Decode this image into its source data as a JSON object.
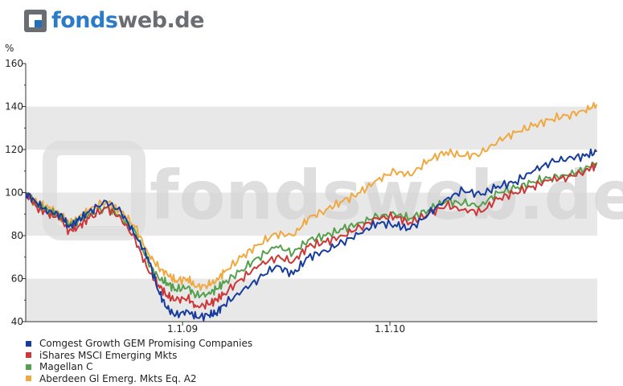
{
  "brand": {
    "part1": "fonds",
    "part2": "web.de",
    "watermark": "fondsweb.de"
  },
  "chart_data": {
    "type": "line",
    "ylabel": "%",
    "ylim": [
      40,
      160
    ],
    "yticks": [
      40,
      60,
      80,
      100,
      120,
      140,
      160
    ],
    "xticks": [
      {
        "label": "1.1.09",
        "date": "2009-01-01"
      },
      {
        "label": "1.1.10",
        "date": "2010-01-01"
      }
    ],
    "xrange": [
      "2008-03-31",
      "2011-01-01"
    ],
    "grid": "horizontal bands",
    "legend_position": "bottom",
    "series": [
      {
        "name": "Comgest Growth GEM Promising Companies",
        "color": "#173c9e",
        "points": [
          [
            "2008-03-31",
            100
          ],
          [
            "2008-04-20",
            95
          ],
          [
            "2008-05-10",
            91
          ],
          [
            "2008-05-31",
            90
          ],
          [
            "2008-06-15",
            84
          ],
          [
            "2008-07-01",
            87
          ],
          [
            "2008-07-20",
            91
          ],
          [
            "2008-08-20",
            96
          ],
          [
            "2008-09-15",
            91
          ],
          [
            "2008-10-10",
            80
          ],
          [
            "2008-11-01",
            70
          ],
          [
            "2008-11-20",
            54
          ],
          [
            "2008-12-05",
            46
          ],
          [
            "2008-12-20",
            43
          ],
          [
            "2009-01-10",
            45
          ],
          [
            "2009-01-25",
            42
          ],
          [
            "2009-02-15",
            43
          ],
          [
            "2009-03-01",
            44
          ],
          [
            "2009-03-15",
            48
          ],
          [
            "2009-04-15",
            54
          ],
          [
            "2009-05-15",
            60
          ],
          [
            "2009-06-15",
            66
          ],
          [
            "2009-07-15",
            62
          ],
          [
            "2009-08-10",
            70
          ],
          [
            "2009-09-10",
            73
          ],
          [
            "2009-10-10",
            77
          ],
          [
            "2009-11-10",
            81
          ],
          [
            "2009-12-10",
            86
          ],
          [
            "2010-01-10",
            85
          ],
          [
            "2010-02-05",
            83
          ],
          [
            "2010-03-10",
            90
          ],
          [
            "2010-04-10",
            97
          ],
          [
            "2010-05-10",
            101
          ],
          [
            "2010-06-10",
            99
          ],
          [
            "2010-07-10",
            103
          ],
          [
            "2010-08-10",
            105
          ],
          [
            "2010-09-10",
            110
          ],
          [
            "2010-10-10",
            114
          ],
          [
            "2010-11-10",
            116
          ],
          [
            "2010-12-10",
            117
          ],
          [
            "2010-12-31",
            119
          ]
        ]
      },
      {
        "name": "iShares MSCI Emerging Mkts",
        "color": "#cc3737",
        "points": [
          [
            "2008-03-31",
            100
          ],
          [
            "2008-04-20",
            93
          ],
          [
            "2008-05-10",
            90
          ],
          [
            "2008-05-31",
            88
          ],
          [
            "2008-06-15",
            82
          ],
          [
            "2008-07-01",
            84
          ],
          [
            "2008-07-20",
            88
          ],
          [
            "2008-08-20",
            93
          ],
          [
            "2008-09-15",
            88
          ],
          [
            "2008-10-10",
            78
          ],
          [
            "2008-11-01",
            64
          ],
          [
            "2008-11-20",
            57
          ],
          [
            "2008-12-05",
            52
          ],
          [
            "2008-12-20",
            50
          ],
          [
            "2009-01-10",
            51
          ],
          [
            "2009-01-25",
            47
          ],
          [
            "2009-02-15",
            48
          ],
          [
            "2009-03-01",
            50
          ],
          [
            "2009-03-15",
            53
          ],
          [
            "2009-04-15",
            60
          ],
          [
            "2009-05-15",
            66
          ],
          [
            "2009-06-15",
            70
          ],
          [
            "2009-07-15",
            68
          ],
          [
            "2009-08-10",
            75
          ],
          [
            "2009-09-10",
            77
          ],
          [
            "2009-10-10",
            80
          ],
          [
            "2009-11-10",
            84
          ],
          [
            "2009-12-10",
            88
          ],
          [
            "2010-01-10",
            89
          ],
          [
            "2010-02-05",
            86
          ],
          [
            "2010-03-10",
            90
          ],
          [
            "2010-04-10",
            94
          ],
          [
            "2010-05-10",
            92
          ],
          [
            "2010-06-10",
            91
          ],
          [
            "2010-07-10",
            97
          ],
          [
            "2010-08-10",
            100
          ],
          [
            "2010-09-10",
            103
          ],
          [
            "2010-10-10",
            106
          ],
          [
            "2010-11-10",
            107
          ],
          [
            "2010-12-10",
            110
          ],
          [
            "2010-12-31",
            113
          ]
        ]
      },
      {
        "name": "Magellan C",
        "color": "#56a04d",
        "points": [
          [
            "2008-03-31",
            100
          ],
          [
            "2008-04-20",
            94
          ],
          [
            "2008-05-10",
            92
          ],
          [
            "2008-05-31",
            89
          ],
          [
            "2008-06-15",
            85
          ],
          [
            "2008-07-01",
            87
          ],
          [
            "2008-07-20",
            90
          ],
          [
            "2008-08-20",
            93
          ],
          [
            "2008-09-15",
            89
          ],
          [
            "2008-10-10",
            82
          ],
          [
            "2008-11-01",
            68
          ],
          [
            "2008-11-20",
            60
          ],
          [
            "2008-12-05",
            58
          ],
          [
            "2008-12-20",
            55
          ],
          [
            "2009-01-10",
            56
          ],
          [
            "2009-01-25",
            52
          ],
          [
            "2009-02-15",
            53
          ],
          [
            "2009-03-01",
            55
          ],
          [
            "2009-03-15",
            58
          ],
          [
            "2009-04-15",
            64
          ],
          [
            "2009-05-15",
            70
          ],
          [
            "2009-06-15",
            75
          ],
          [
            "2009-07-15",
            72
          ],
          [
            "2009-08-10",
            78
          ],
          [
            "2009-09-10",
            80
          ],
          [
            "2009-10-10",
            83
          ],
          [
            "2009-11-10",
            86
          ],
          [
            "2009-12-10",
            89
          ],
          [
            "2010-01-10",
            90
          ],
          [
            "2010-02-05",
            88
          ],
          [
            "2010-03-10",
            92
          ],
          [
            "2010-04-10",
            96
          ],
          [
            "2010-05-10",
            95
          ],
          [
            "2010-06-10",
            94
          ],
          [
            "2010-07-10",
            100
          ],
          [
            "2010-08-10",
            102
          ],
          [
            "2010-09-10",
            105
          ],
          [
            "2010-10-10",
            107
          ],
          [
            "2010-11-10",
            108
          ],
          [
            "2010-12-10",
            111
          ],
          [
            "2010-12-31",
            114
          ]
        ]
      },
      {
        "name": "Aberdeen Gl Emerg. Mkts Eq. A2",
        "color": "#f0a840",
        "points": [
          [
            "2008-03-31",
            100
          ],
          [
            "2008-04-20",
            95
          ],
          [
            "2008-05-10",
            93
          ],
          [
            "2008-05-31",
            90
          ],
          [
            "2008-06-15",
            86
          ],
          [
            "2008-07-01",
            88
          ],
          [
            "2008-07-20",
            92
          ],
          [
            "2008-08-20",
            96
          ],
          [
            "2008-09-15",
            91
          ],
          [
            "2008-10-10",
            84
          ],
          [
            "2008-11-01",
            72
          ],
          [
            "2008-11-20",
            65
          ],
          [
            "2008-12-05",
            62
          ],
          [
            "2008-12-20",
            59
          ],
          [
            "2009-01-10",
            60
          ],
          [
            "2009-01-25",
            56
          ],
          [
            "2009-02-15",
            57
          ],
          [
            "2009-03-01",
            59
          ],
          [
            "2009-03-15",
            63
          ],
          [
            "2009-04-15",
            70
          ],
          [
            "2009-05-15",
            76
          ],
          [
            "2009-06-15",
            81
          ],
          [
            "2009-07-15",
            80
          ],
          [
            "2009-08-10",
            88
          ],
          [
            "2009-09-10",
            92
          ],
          [
            "2009-10-10",
            96
          ],
          [
            "2009-11-10",
            100
          ],
          [
            "2009-12-10",
            106
          ],
          [
            "2010-01-10",
            110
          ],
          [
            "2010-02-05",
            108
          ],
          [
            "2010-03-10",
            115
          ],
          [
            "2010-04-10",
            119
          ],
          [
            "2010-05-10",
            117
          ],
          [
            "2010-06-10",
            118
          ],
          [
            "2010-07-10",
            124
          ],
          [
            "2010-08-10",
            128
          ],
          [
            "2010-09-10",
            131
          ],
          [
            "2010-10-10",
            134
          ],
          [
            "2010-11-10",
            136
          ],
          [
            "2010-12-10",
            138
          ],
          [
            "2010-12-31",
            141
          ]
        ]
      }
    ]
  }
}
